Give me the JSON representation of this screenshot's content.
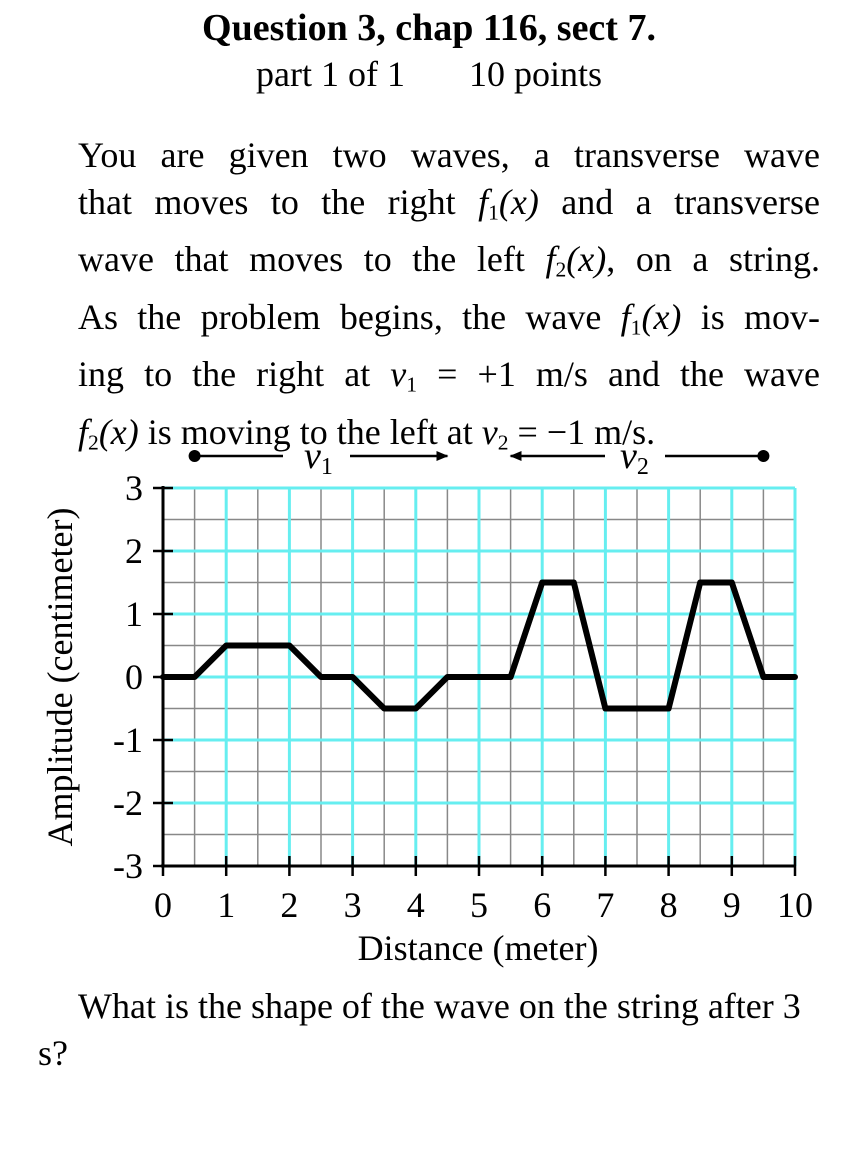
{
  "header": {
    "title": "Question 3, chap 116, sect 7.",
    "part": "part 1 of 1",
    "points": "10 points"
  },
  "problem": {
    "line1": "You are given two waves, a transverse wave",
    "line2_pre": "that moves to the right",
    "line2_post": "and a transverse",
    "line3_pre": "wave that moves to the left",
    "line3_post": ", on a string.",
    "line4_pre": "As the problem begins, the wave",
    "line4_post": "is mov-",
    "line5_pre": "ing to the right at",
    "line5_eq": "= +1 m/s and the wave",
    "line6_post": "is moving to the left at",
    "line6_eq": "= −1 m/s.",
    "f1": "f",
    "f2": "f",
    "sub1": "1",
    "sub2": "2",
    "arg": "(x)",
    "v": "v",
    "x": "x"
  },
  "chart_data": {
    "type": "line",
    "xlabel": "Distance (meter)",
    "ylabel": "Amplitude (centimeter)",
    "xlim": [
      0,
      10
    ],
    "ylim": [
      -3,
      3
    ],
    "x_ticks": [
      "0",
      "1",
      "2",
      "3",
      "4",
      "5",
      "6",
      "7",
      "8",
      "9",
      "10"
    ],
    "y_ticks": [
      "3",
      "2",
      "1",
      "0",
      "-1",
      "-2",
      "-3"
    ],
    "grid": true,
    "grid_color": "#66eef0",
    "minor_grid_color": "#888888",
    "line_color": "#000000",
    "series": [
      {
        "x": [
          0,
          0.5,
          1,
          2,
          2.5,
          3,
          3.5,
          4,
          4.5,
          5.5,
          6,
          6.5,
          7,
          8,
          8.5,
          9,
          9.5,
          10
        ],
        "y": [
          0,
          0,
          0.5,
          0.5,
          0,
          0,
          -0.5,
          -0.5,
          0,
          0,
          1.5,
          1.5,
          -0.5,
          -0.5,
          1.5,
          1.5,
          0,
          0
        ]
      }
    ],
    "arrows": {
      "v1_label": "v",
      "v2_label": "v",
      "v1_sub": "1",
      "v2_sub": "2",
      "v1_start": 0.5,
      "v1_end": 4.5,
      "v2_start": 9.5,
      "v2_end": 5.5
    }
  },
  "question": {
    "text": "What is the shape of the wave on the string after 3 s?"
  }
}
